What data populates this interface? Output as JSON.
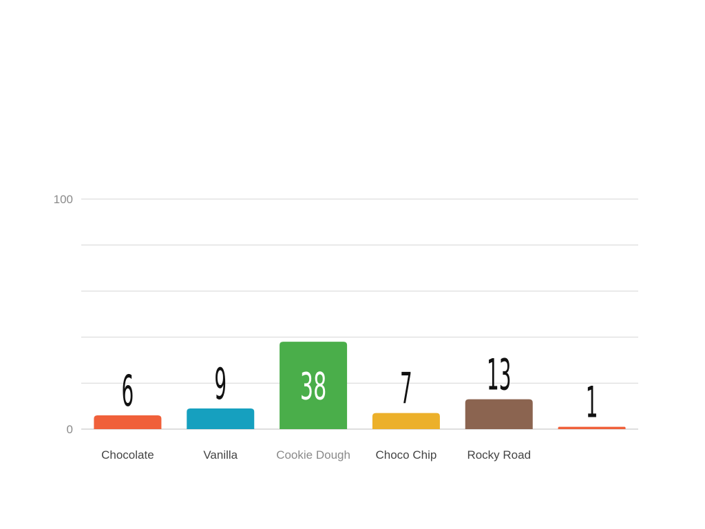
{
  "chart_data": {
    "type": "bar",
    "title": "",
    "xlabel": "",
    "ylabel": "",
    "ylim": [
      0,
      100
    ],
    "yticks_labeled": [
      "100",
      "0"
    ],
    "gridlines": [
      0,
      20,
      40,
      60,
      80,
      100
    ],
    "grid": true,
    "legend": "none",
    "categories": [
      "Chocolate",
      "Vanilla",
      "Cookie Dough",
      "Choco Chip",
      "Rocky Road",
      ""
    ],
    "values": [
      6,
      9,
      38,
      7,
      13,
      1
    ],
    "value_labels": [
      "6",
      "9",
      "38",
      "7",
      "13",
      "1"
    ],
    "colors": [
      "#f0603a",
      "#16a0bf",
      "#4aae4a",
      "#ecb02a",
      "#8b6450",
      "#f0603a"
    ],
    "highlight_index": 2
  }
}
